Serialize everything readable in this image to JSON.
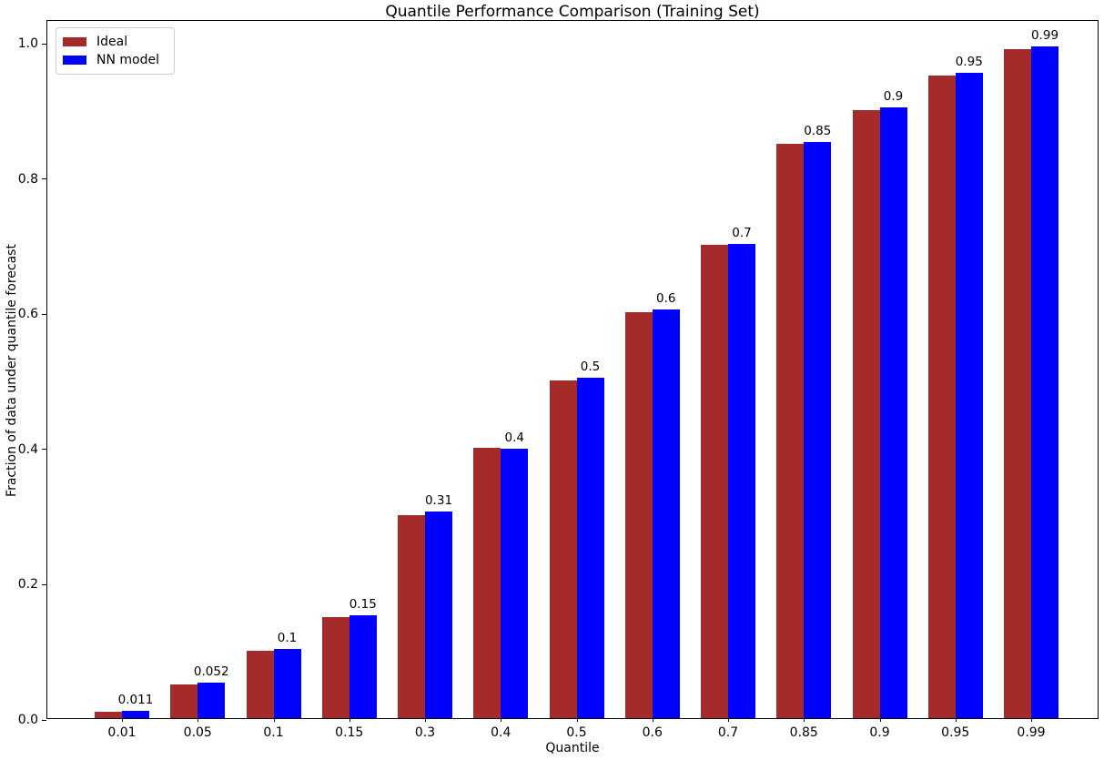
{
  "chart_data": {
    "type": "bar",
    "title": "Quantile Performance Comparison (Training Set)",
    "xlabel": "Quantile",
    "ylabel": "Fraction of data under quantile forecast",
    "categories": [
      "0.01",
      "0.05",
      "0.1",
      "0.15",
      "0.3",
      "0.4",
      "0.5",
      "0.6",
      "0.7",
      "0.85",
      "0.9",
      "0.95",
      "0.99"
    ],
    "series": [
      {
        "name": "Ideal",
        "color": "#A52A2A",
        "values": [
          0.01,
          0.05,
          0.1,
          0.15,
          0.3,
          0.4,
          0.5,
          0.6,
          0.7,
          0.85,
          0.9,
          0.95,
          0.99
        ]
      },
      {
        "name": "NN model",
        "color": "#0000FF",
        "values": [
          0.011,
          0.052,
          0.102,
          0.152,
          0.306,
          0.398,
          0.503,
          0.605,
          0.701,
          0.852,
          0.903,
          0.955,
          0.993
        ]
      }
    ],
    "bar_labels": [
      "0.011",
      "0.052",
      "0.1",
      "0.15",
      "0.31",
      "0.4",
      "0.5",
      "0.6",
      "0.7",
      "0.85",
      "0.9",
      "0.95",
      "0.99"
    ],
    "yticks": [
      "0.0",
      "0.2",
      "0.4",
      "0.6",
      "0.8",
      "1.0"
    ],
    "ylim": [
      0,
      1.034
    ],
    "grid": false,
    "legend_position": "upper-left",
    "legend": [
      {
        "label": "Ideal",
        "color": "#A52A2A"
      },
      {
        "label": "NN model",
        "color": "#0000FF"
      }
    ]
  }
}
